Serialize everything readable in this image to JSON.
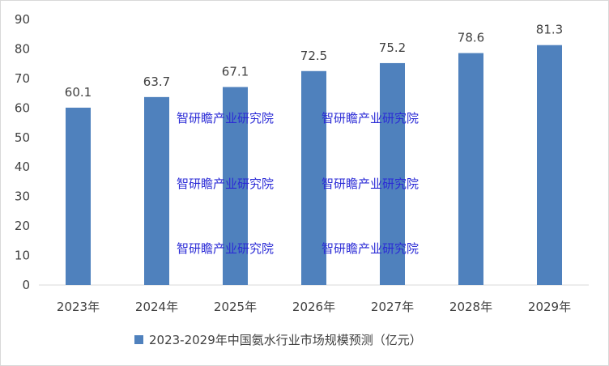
{
  "chart_data": {
    "type": "bar",
    "categories": [
      "2023年",
      "2024年",
      "2025年",
      "2026年",
      "2027年",
      "2028年",
      "2029年"
    ],
    "series": [
      {
        "name": "2023-2029年中国氨水行业市场规模预测（亿元）",
        "values": [
          60.1,
          63.7,
          67.1,
          72.5,
          75.2,
          78.6,
          81.3
        ],
        "data_labels": [
          "60.1",
          "63.7",
          "67.1",
          "72.5",
          "75.2",
          "78.6",
          "81.3"
        ]
      }
    ],
    "ylim": [
      0,
      90
    ],
    "yticks": [
      0,
      10,
      20,
      30,
      40,
      50,
      60,
      70,
      80,
      90
    ],
    "grid": false,
    "legend_position": "bottom",
    "colors": {
      "bar": "#4f81bd",
      "watermark": "#2b2bd6",
      "axis": "#d9d9d9"
    }
  },
  "watermarks": [
    "智研瞻产业研究院",
    "智研瞻产业研究院",
    "智研瞻产业研究院",
    "智研瞻产业研究院",
    "智研瞻产业研究院",
    "智研瞻产业研究院"
  ]
}
